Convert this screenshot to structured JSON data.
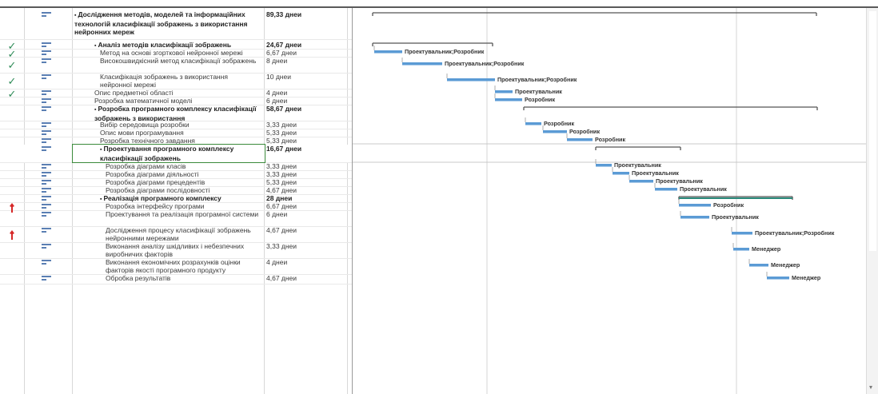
{
  "tasks": [
    {
      "name": "Дослідження методів, моделей та інформаційних технологій класифікації зображень з використання нейронних мереж",
      "duration": "89,33 днеи",
      "level": 0,
      "summary": true,
      "done": false,
      "pin": false,
      "collapse": "▪"
    },
    {
      "name": "Аналіз методів класифікації зображень",
      "duration": "24,67 днеи",
      "level": 1,
      "summary": true,
      "done": true,
      "pin": false,
      "collapse": "▪"
    },
    {
      "name": "Метод на основі згорткової нейронної мережі",
      "duration": "6,67 днеи",
      "level": 2,
      "summary": false,
      "done": true,
      "pin": false,
      "collapse": ""
    },
    {
      "name": "Високошвидкісний метод класифікації зображень",
      "duration": "8 днеи",
      "level": 2,
      "summary": false,
      "done": true,
      "pin": false,
      "collapse": ""
    },
    {
      "name": "Класифікація зображень з використання нейронної мережі",
      "duration": "10 днеи",
      "level": 2,
      "summary": false,
      "done": true,
      "pin": false,
      "collapse": ""
    },
    {
      "name": "Опис предметної області",
      "duration": "4 днеи",
      "level": 1,
      "summary": false,
      "done": true,
      "pin": false,
      "collapse": ""
    },
    {
      "name": "Розробка математичної моделі",
      "duration": "6 днеи",
      "level": 1,
      "summary": false,
      "done": false,
      "pin": false,
      "collapse": ""
    },
    {
      "name": "Розробка програмного комплексу класифікації зображень з використання",
      "duration": "58,67 днеи",
      "level": 1,
      "summary": true,
      "done": false,
      "pin": false,
      "collapse": "▪"
    },
    {
      "name": "Вибір середовища розробки",
      "duration": "3,33 днеи",
      "level": 2,
      "summary": false,
      "done": false,
      "pin": false,
      "collapse": ""
    },
    {
      "name": "Опис мови програмування",
      "duration": "5,33 днеи",
      "level": 2,
      "summary": false,
      "done": false,
      "pin": false,
      "collapse": ""
    },
    {
      "name": "Розробка технічного завдання",
      "duration": "5,33 днеи",
      "level": 2,
      "summary": false,
      "done": false,
      "pin": false,
      "collapse": ""
    },
    {
      "name": "Проектування програмного комплексу класифікації зображень",
      "duration": "16,67 днеи",
      "level": 2,
      "summary": true,
      "done": false,
      "pin": false,
      "collapse": "▪"
    },
    {
      "name": "Розробка діаграми класів",
      "duration": "3,33 днеи",
      "level": 3,
      "summary": false,
      "done": false,
      "pin": false,
      "collapse": ""
    },
    {
      "name": "Розробка діаграми діяльності",
      "duration": "3,33 днеи",
      "level": 3,
      "summary": false,
      "done": false,
      "pin": false,
      "collapse": ""
    },
    {
      "name": "Розробка діаграми прецедентів",
      "duration": "5,33 днеи",
      "level": 3,
      "summary": false,
      "done": false,
      "pin": false,
      "collapse": ""
    },
    {
      "name": "Розробка діаграми послідовності",
      "duration": "4,67 днеи",
      "level": 3,
      "summary": false,
      "done": false,
      "pin": false,
      "collapse": ""
    },
    {
      "name": "Реалізація програмного комплексу",
      "duration": "28 днеи",
      "level": 2,
      "summary": true,
      "done": false,
      "pin": false,
      "collapse": "▪"
    },
    {
      "name": "Розробка інтерфейсу програми",
      "duration": "6,67 днеи",
      "level": 3,
      "summary": false,
      "done": false,
      "pin": true,
      "collapse": ""
    },
    {
      "name": "Проектування та реалізація програмної системи",
      "duration": "6 днеи",
      "level": 3,
      "summary": false,
      "done": false,
      "pin": false,
      "collapse": ""
    },
    {
      "name": "Дослідження процесу класифікації зображень нейронними мережами",
      "duration": "4,67 днеи",
      "level": 3,
      "summary": false,
      "done": false,
      "pin": true,
      "collapse": ""
    },
    {
      "name": "Виконання аналізу шкідливих і небезпечних виробничих факторів",
      "duration": "3,33 днеи",
      "level": 3,
      "summary": false,
      "done": false,
      "pin": false,
      "collapse": ""
    },
    {
      "name": "Виконання економічних розрахунків оцінки факторів якості програмного продукту",
      "duration": "4 днеи",
      "level": 3,
      "summary": false,
      "done": false,
      "pin": false,
      "collapse": ""
    },
    {
      "name": "Обробка результатів",
      "duration": "4,67 днеи",
      "level": 3,
      "summary": false,
      "done": false,
      "pin": false,
      "collapse": ""
    }
  ],
  "gantt_labels": [
    "",
    "",
    "Проектувальник;Розробник",
    "Проектувальник;Розробник",
    "Проектувальник;Розробник",
    "Проектувальник",
    "Розробник",
    "",
    "Розробник",
    "Розробник",
    "Розробник",
    "",
    "Проектувальник",
    "Проектувальник",
    "Проектувальник",
    "Проектувальник",
    "",
    "Розробник",
    "Проектувальник",
    "Проектувальник;Розробник",
    "Менеджер",
    "Менеджер",
    "Менеджер"
  ],
  "colors": {
    "bar": "#5b9bd5",
    "summary": "#555555",
    "done_check": "#2e8b57",
    "pin": "#d62828",
    "progress": "#2a8a7a"
  },
  "selected_index": 11,
  "check_glyph": "✓"
}
